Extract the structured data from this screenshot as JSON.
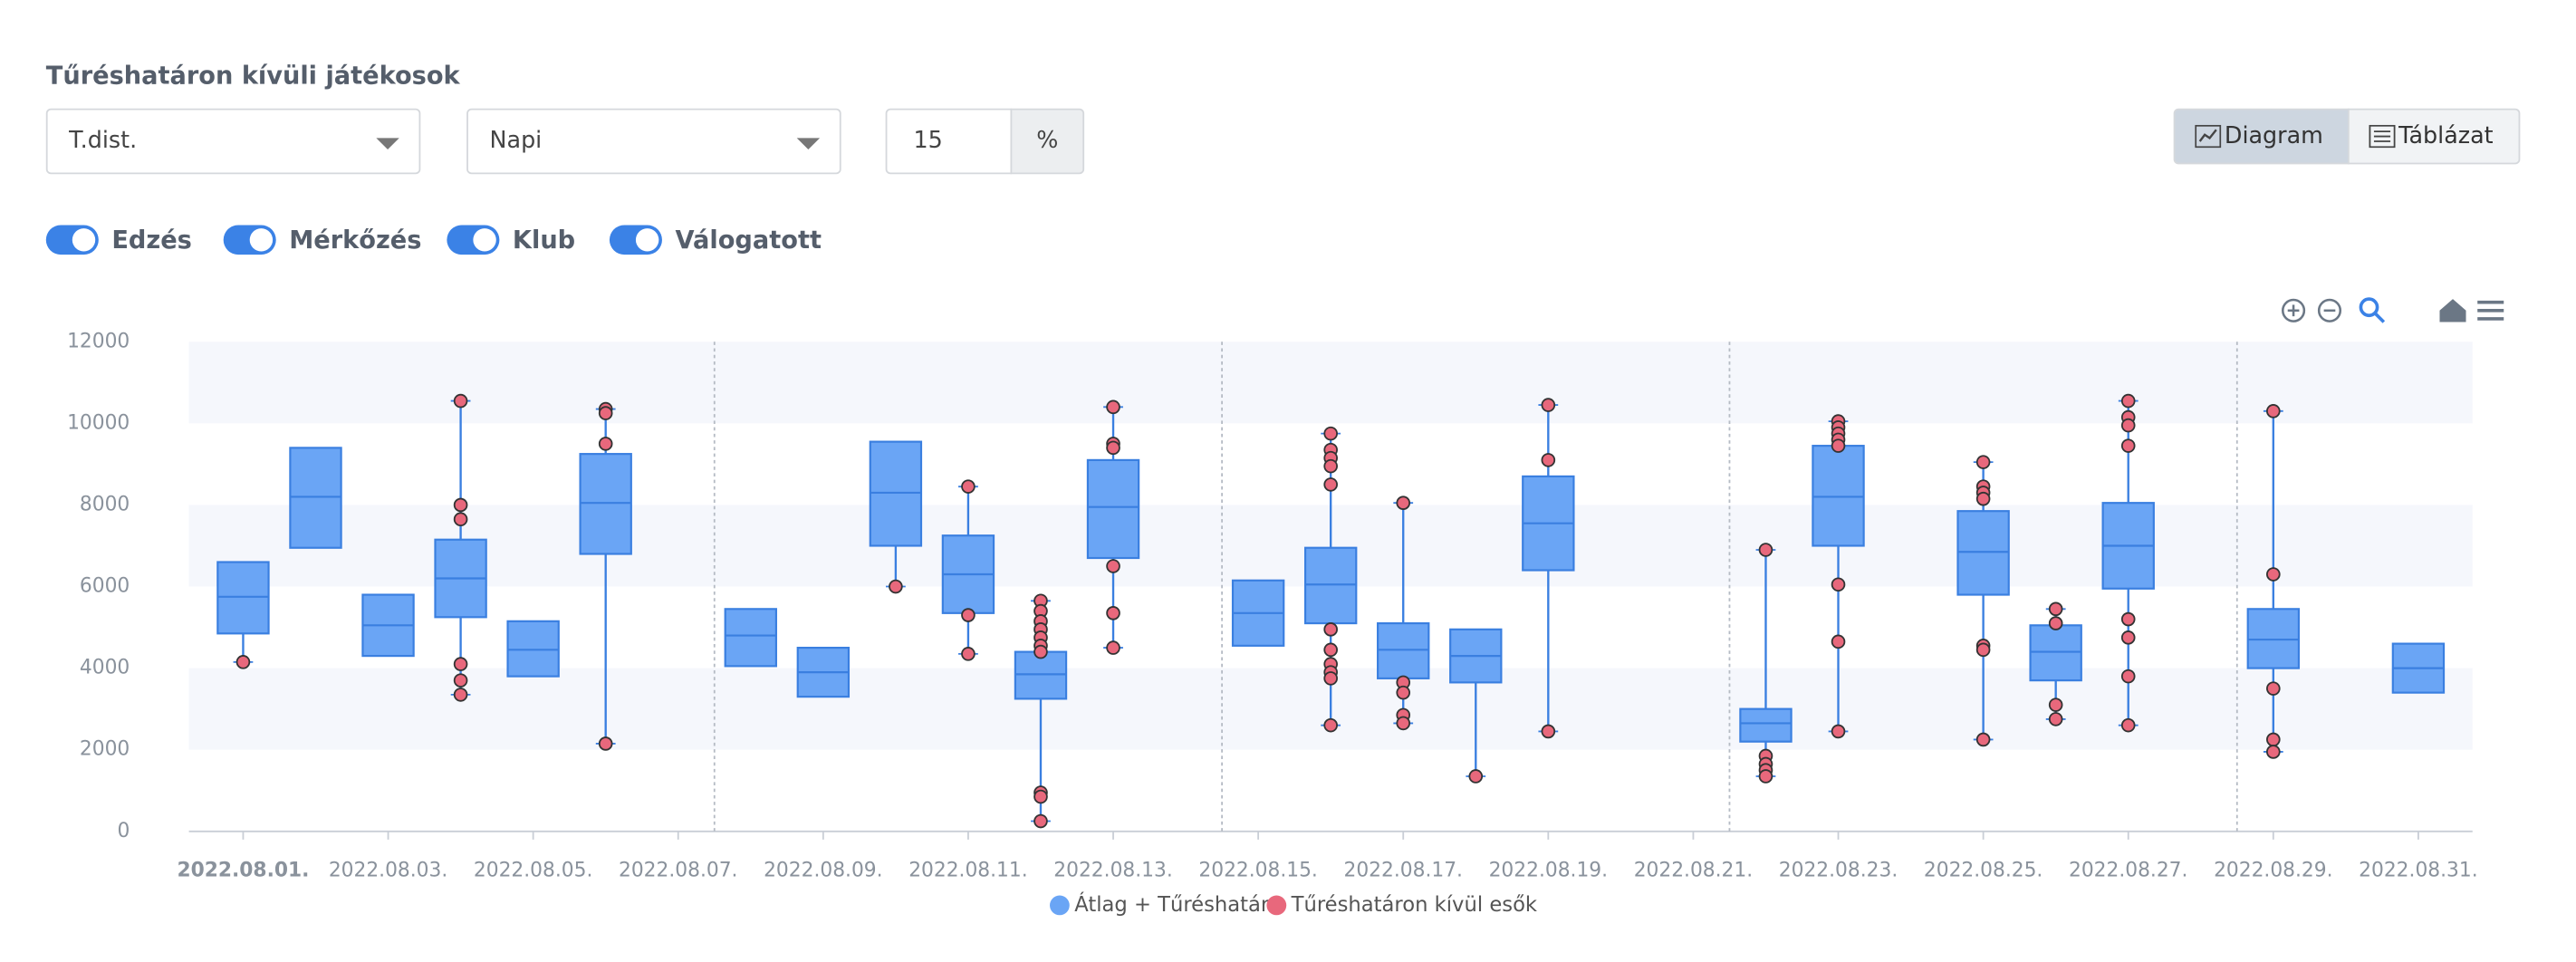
{
  "header": {
    "title": "Tűréshatáron kívüli játékosok"
  },
  "controls": {
    "metric": "T.dist.",
    "period": "Napi",
    "tolerance": "15",
    "unit": "%",
    "views": [
      "Diagram",
      "Táblázat"
    ],
    "toggles": [
      "Edzés",
      "Mérkőzés",
      "Klub",
      "Válogatott"
    ]
  },
  "chart_data": {
    "type": "box",
    "categories": [
      "2022.08.01.",
      null,
      "2022.08.03.",
      null,
      "2022.08.05.",
      null,
      "2022.08.07.",
      null,
      "2022.08.09.",
      null,
      "2022.08.11.",
      null,
      "2022.08.13.",
      null,
      "2022.08.15.",
      null,
      "2022.08.17.",
      null,
      "2022.08.19.",
      null,
      "2022.08.21.",
      null,
      "2022.08.23.",
      null,
      "2022.08.25.",
      null,
      "2022.08.27.",
      null,
      "2022.08.29.",
      null,
      "2022.08.31."
    ],
    "ylim": [
      0,
      12000
    ],
    "yticks": [
      0,
      2000,
      4000,
      6000,
      8000,
      10000,
      12000
    ],
    "series": [
      {
        "name": "Átlag + Tűréshatár",
        "color": "#6aa5f5",
        "values": [
          {
            "min": 4150,
            "q1": 4850,
            "median": 5750,
            "q3": 6600
          },
          {
            "q1": 6950,
            "median": 8200,
            "q3": 9400
          },
          {
            "q1": 4300,
            "median": 5050,
            "q3": 5800
          },
          {
            "min": 3350,
            "q1": 5250,
            "median": 6200,
            "q3": 7150,
            "max": 10550
          },
          {
            "q1": 3800,
            "median": 4450,
            "q3": 5150
          },
          {
            "min": 2150,
            "q1": 6800,
            "median": 8050,
            "q3": 9250,
            "max": 10350
          },
          null,
          {
            "q1": 4050,
            "median": 4800,
            "q3": 5450
          },
          {
            "q1": 3300,
            "median": 3900,
            "q3": 4500
          },
          {
            "min": 6000,
            "q1": 7000,
            "median": 8300,
            "q3": 9550
          },
          {
            "min": 4350,
            "q1": 5350,
            "median": 6300,
            "q3": 7250,
            "max": 8450
          },
          {
            "min": 250,
            "q1": 3250,
            "median": 3850,
            "q3": 4400,
            "max": 5650
          },
          {
            "min": 4500,
            "q1": 6700,
            "median": 7950,
            "q3": 9100,
            "max": 10400
          },
          null,
          {
            "q1": 4550,
            "median": 5350,
            "q3": 6150
          },
          {
            "min": 2600,
            "q1": 5100,
            "median": 6050,
            "q3": 6950,
            "max": 9750
          },
          {
            "min": 2650,
            "q1": 3750,
            "median": 4450,
            "q3": 5100,
            "max": 8050
          },
          {
            "min": 1350,
            "q1": 3650,
            "median": 4300,
            "q3": 4950
          },
          {
            "min": 2450,
            "q1": 6400,
            "median": 7550,
            "q3": 8700,
            "max": 10450
          },
          null,
          null,
          {
            "min": 1350,
            "q1": 2200,
            "median": 2650,
            "q3": 3000,
            "max": 6900
          },
          {
            "min": 2450,
            "q1": 7000,
            "median": 8200,
            "q3": 9450,
            "max": 10050
          },
          null,
          {
            "min": 2250,
            "q1": 5800,
            "median": 6850,
            "q3": 7850,
            "max": 9050
          },
          {
            "min": 2750,
            "q1": 3700,
            "median": 4400,
            "q3": 5050,
            "max": 5450
          },
          {
            "min": 2600,
            "q1": 5950,
            "median": 7000,
            "q3": 8050,
            "max": 10550
          },
          null,
          {
            "min": 1950,
            "q1": 4000,
            "median": 4700,
            "q3": 5450,
            "max": 10300
          },
          null,
          {
            "q1": 3400,
            "median": 4000,
            "q3": 4600
          }
        ]
      },
      {
        "name": "Tűréshatáron kívül esők",
        "color": "#e8687c",
        "values": [
          [
            4150
          ],
          null,
          null,
          [
            10550,
            8000,
            7650,
            4100,
            3700,
            3350
          ],
          null,
          [
            10350,
            10250,
            9500,
            2150
          ],
          null,
          null,
          null,
          [
            6000
          ],
          [
            8450,
            5300,
            4350
          ],
          [
            5650,
            5400,
            5150,
            4950,
            4750,
            4550,
            4400,
            950,
            850,
            250
          ],
          [
            10400,
            9500,
            9400,
            6500,
            5350,
            4500
          ],
          null,
          null,
          [
            9750,
            9350,
            9150,
            8950,
            8500,
            4950,
            4450,
            4100,
            3900,
            3750,
            2600
          ],
          [
            8050,
            3650,
            3400,
            2850,
            2650
          ],
          [
            1350
          ],
          [
            10450,
            9100,
            2450
          ],
          null,
          null,
          [
            6900,
            1850,
            1650,
            1500,
            1350
          ],
          [
            10050,
            9900,
            9750,
            9600,
            9450,
            6050,
            4650,
            2450
          ],
          null,
          [
            9050,
            8450,
            8300,
            8150,
            4550,
            4450,
            2250
          ],
          [
            5450,
            5100,
            3100,
            2750
          ],
          [
            10550,
            10150,
            9950,
            9450,
            5200,
            4750,
            3800,
            2600
          ],
          null,
          [
            10300,
            6300,
            3500,
            2250,
            1950
          ],
          null,
          null
        ]
      }
    ]
  }
}
